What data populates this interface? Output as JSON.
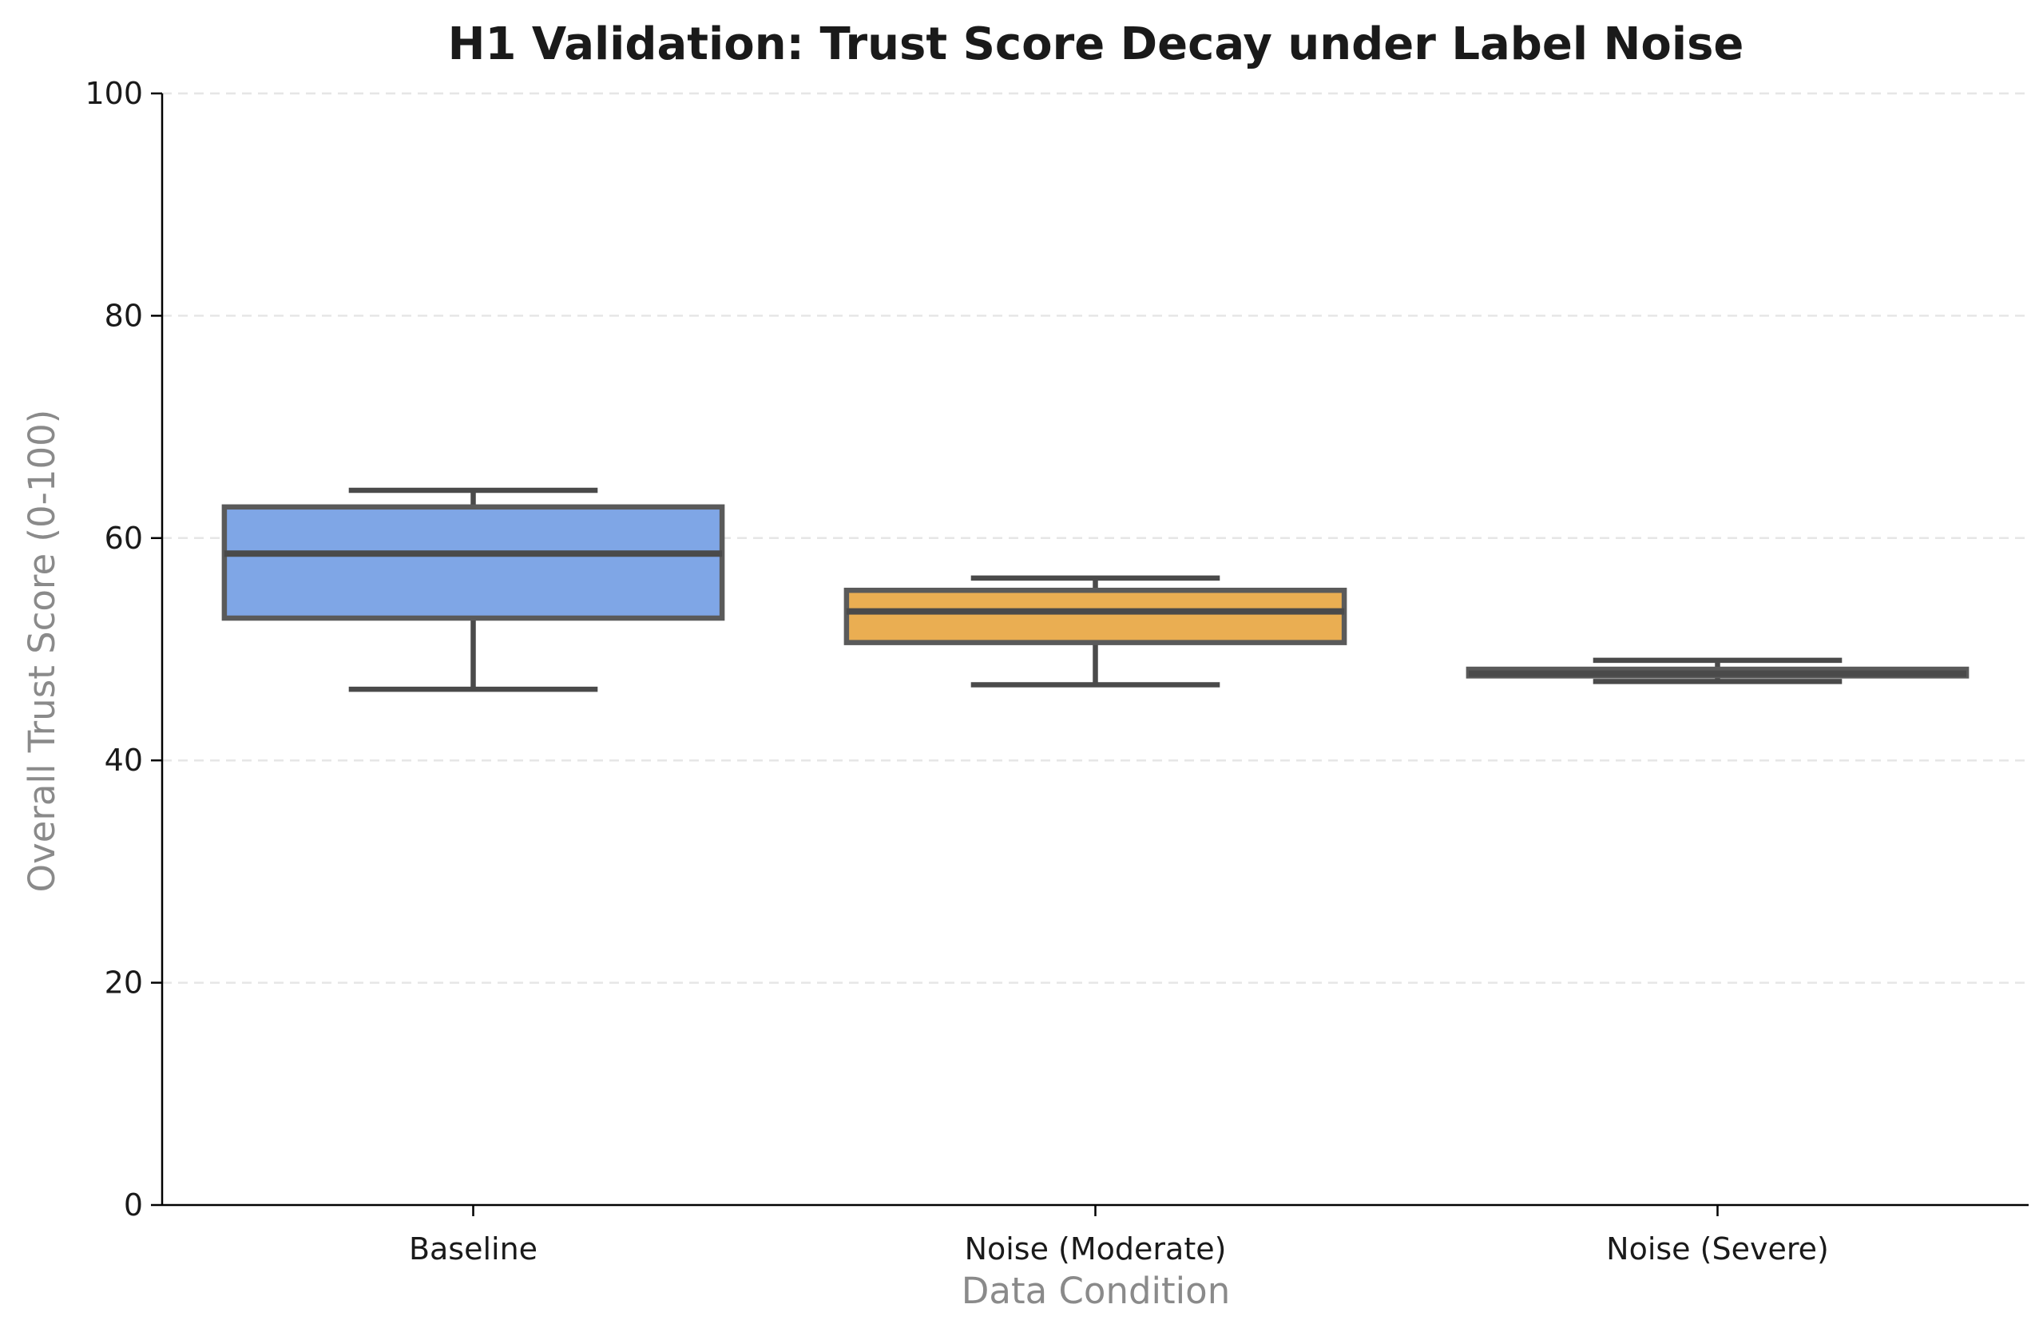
{
  "chart_data": {
    "type": "box",
    "title": "H1 Validation: Trust Score Decay under Label Noise",
    "xlabel": "Data Condition",
    "ylabel": "Overall Trust Score (0-100)",
    "ylim": [
      0,
      100
    ],
    "yticks": [
      0,
      20,
      40,
      60,
      80,
      100
    ],
    "grid": "horizontal dashed",
    "categories": [
      "Baseline",
      "Noise (Moderate)",
      "Noise (Severe)"
    ],
    "boxes": [
      {
        "category": "Baseline",
        "min": 46.4,
        "q1": 52.8,
        "median": 58.6,
        "q3": 62.8,
        "max": 64.3,
        "color": "#7fa6e6"
      },
      {
        "category": "Noise (Moderate)",
        "min": 46.8,
        "q1": 50.6,
        "median": 53.4,
        "q3": 55.3,
        "max": 56.4,
        "color": "#eaae52"
      },
      {
        "category": "Noise (Severe)",
        "min": 47.1,
        "q1": 47.6,
        "median": 47.8,
        "q3": 48.2,
        "max": 49.0,
        "color": "#9aa0aa"
      }
    ]
  }
}
